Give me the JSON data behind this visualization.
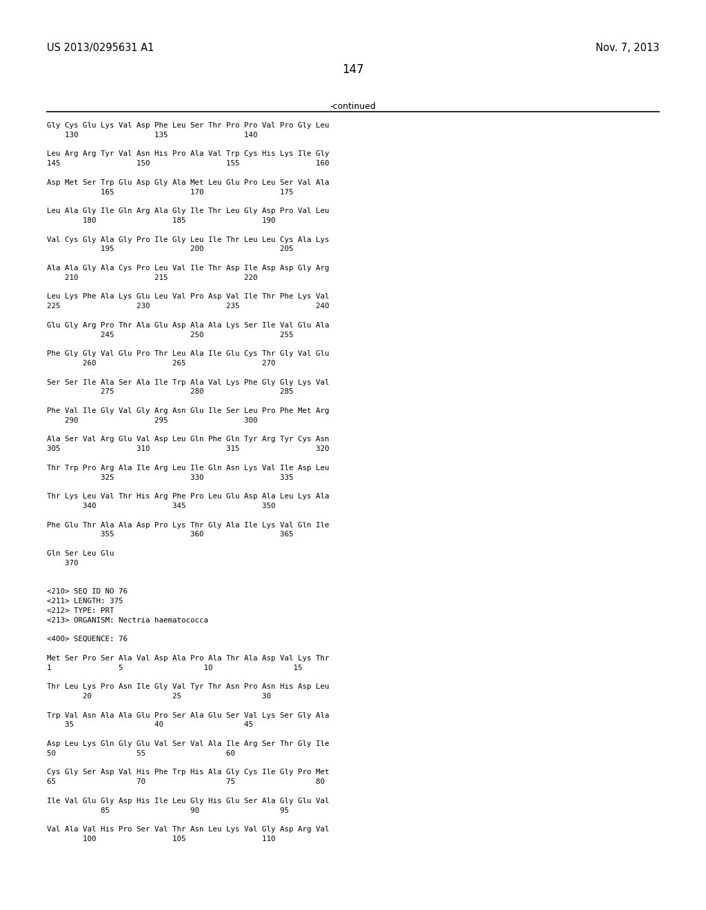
{
  "header_left": "US 2013/0295631 A1",
  "header_right": "Nov. 7, 2013",
  "page_number": "147",
  "continued_label": "-continued",
  "background_color": "#ffffff",
  "text_color": "#000000",
  "content_lines": [
    "Gly Cys Glu Lys Val Asp Phe Leu Ser Thr Pro Pro Val Pro Gly Leu",
    "    130                 135                 140",
    "",
    "Leu Arg Arg Tyr Val Asn His Pro Ala Val Trp Cys His Lys Ile Gly",
    "145                 150                 155                 160",
    "",
    "Asp Met Ser Trp Glu Asp Gly Ala Met Leu Glu Pro Leu Ser Val Ala",
    "            165                 170                 175",
    "",
    "Leu Ala Gly Ile Gln Arg Ala Gly Ile Thr Leu Gly Asp Pro Val Leu",
    "        180                 185                 190",
    "",
    "Val Cys Gly Ala Gly Pro Ile Gly Leu Ile Thr Leu Leu Cys Ala Lys",
    "            195                 200                 205",
    "",
    "Ala Ala Gly Ala Cys Pro Leu Val Ile Thr Asp Ile Asp Asp Gly Arg",
    "    210                 215                 220",
    "",
    "Leu Lys Phe Ala Lys Glu Leu Val Pro Asp Val Ile Thr Phe Lys Val",
    "225                 230                 235                 240",
    "",
    "Glu Gly Arg Pro Thr Ala Glu Asp Ala Ala Lys Ser Ile Val Glu Ala",
    "            245                 250                 255",
    "",
    "Phe Gly Gly Val Glu Pro Thr Leu Ala Ile Glu Cys Thr Gly Val Glu",
    "        260                 265                 270",
    "",
    "Ser Ser Ile Ala Ser Ala Ile Trp Ala Val Lys Phe Gly Gly Lys Val",
    "            275                 280                 285",
    "",
    "Phe Val Ile Gly Val Gly Arg Asn Glu Ile Ser Leu Pro Phe Met Arg",
    "    290                 295                 300",
    "",
    "Ala Ser Val Arg Glu Val Asp Leu Gln Phe Gln Tyr Arg Tyr Cys Asn",
    "305                 310                 315                 320",
    "",
    "Thr Trp Pro Arg Ala Ile Arg Leu Ile Gln Asn Lys Val Ile Asp Leu",
    "            325                 330                 335",
    "",
    "Thr Lys Leu Val Thr His Arg Phe Pro Leu Glu Asp Ala Leu Lys Ala",
    "        340                 345                 350",
    "",
    "Phe Glu Thr Ala Ala Asp Pro Lys Thr Gly Ala Ile Lys Val Gln Ile",
    "            355                 360                 365",
    "",
    "Gln Ser Leu Glu",
    "    370",
    "",
    "",
    "<210> SEQ ID NO 76",
    "<211> LENGTH: 375",
    "<212> TYPE: PRT",
    "<213> ORGANISM: Nectria haematococca",
    "",
    "<400> SEQUENCE: 76",
    "",
    "Met Ser Pro Ser Ala Val Asp Ala Pro Ala Thr Ala Asp Val Lys Thr",
    "1               5                  10                  15",
    "",
    "Thr Leu Lys Pro Asn Ile Gly Val Tyr Thr Asn Pro Asn His Asp Leu",
    "        20                  25                  30",
    "",
    "Trp Val Asn Ala Ala Glu Pro Ser Ala Glu Ser Val Lys Ser Gly Ala",
    "    35                  40                  45",
    "",
    "Asp Leu Lys Gln Gly Glu Val Ser Val Ala Ile Arg Ser Thr Gly Ile",
    "50                  55                  60",
    "",
    "Cys Gly Ser Asp Val His Phe Trp His Ala Gly Cys Ile Gly Pro Met",
    "65                  70                  75                  80",
    "",
    "Ile Val Glu Gly Asp His Ile Leu Gly His Glu Ser Ala Gly Glu Val",
    "            85                  90                  95",
    "",
    "Val Ala Val His Pro Ser Val Thr Asn Leu Lys Val Gly Asp Arg Val",
    "        100                 105                 110"
  ]
}
